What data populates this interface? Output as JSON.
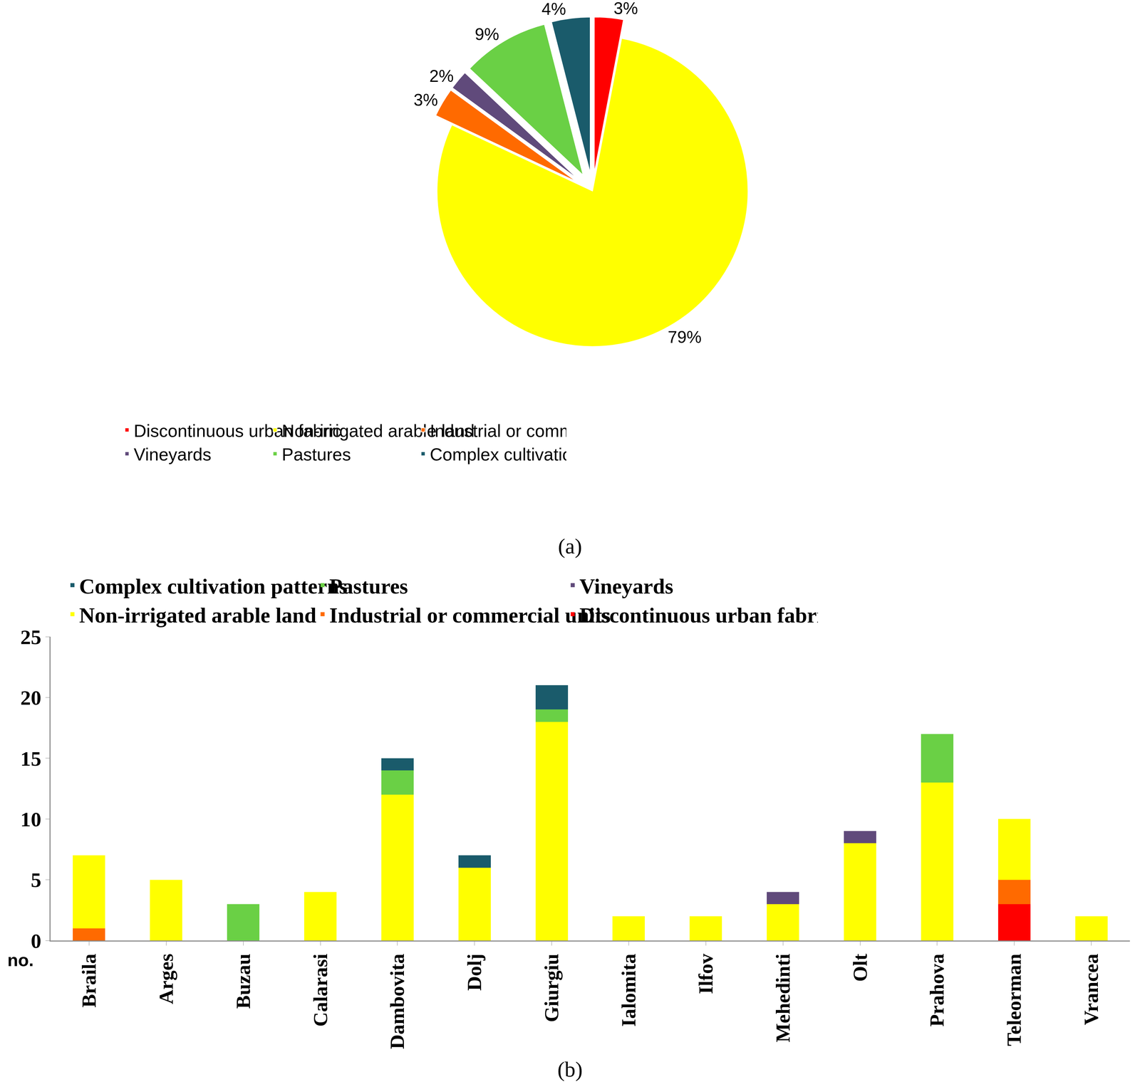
{
  "chart_data": [
    {
      "type": "pie",
      "title": "(a)",
      "categories": [
        "Discontinuous urban fabric",
        "Non-irrigated arable land",
        "Industrial or commercial units",
        "Vineyards",
        "Pastures",
        "Complex cultivation patterns"
      ],
      "values": [
        3,
        79,
        3,
        2,
        9,
        4
      ],
      "value_labels": [
        "3%",
        "79%",
        "3%",
        "2%",
        "9%",
        "4%"
      ],
      "colors": [
        "#ff0000",
        "#ffff00",
        "#ff6a00",
        "#604a7b",
        "#6ad045",
        "#1a5b6b"
      ],
      "data_labels": true,
      "legend": "bottom"
    },
    {
      "type": "bar",
      "title": "(b)",
      "ylabel": "no.",
      "categories": [
        "Braila",
        "Arges",
        "Buzau",
        "Calarasi",
        "Dambovita",
        "Dolj",
        "Giurgiu",
        "Ialomita",
        "Ilfov",
        "Mehedinti",
        "Olt",
        "Prahova",
        "Teleorman",
        "Vrancea"
      ],
      "series": [
        {
          "name": "Discontinuous urban fabric",
          "color": "#ff0000",
          "values": [
            0,
            0,
            0,
            0,
            0,
            0,
            0,
            0,
            0,
            0,
            0,
            0,
            3,
            0
          ]
        },
        {
          "name": "Industrial or commercial units",
          "color": "#ff6a00",
          "values": [
            1,
            0,
            0,
            0,
            0,
            0,
            0,
            0,
            0,
            0,
            0,
            0,
            2,
            0
          ]
        },
        {
          "name": "Non-irrigated arable land",
          "color": "#ffff00",
          "values": [
            6,
            5,
            0,
            4,
            12,
            6,
            18,
            2,
            2,
            3,
            8,
            13,
            5,
            2
          ]
        },
        {
          "name": "Vineyards",
          "color": "#604a7b",
          "values": [
            0,
            0,
            0,
            0,
            0,
            0,
            0,
            0,
            0,
            1,
            1,
            0,
            0,
            0
          ]
        },
        {
          "name": "Pastures",
          "color": "#6ad045",
          "values": [
            0,
            0,
            3,
            0,
            2,
            0,
            1,
            0,
            0,
            0,
            0,
            4,
            0,
            0
          ]
        },
        {
          "name": "Complex cultivation patterns",
          "color": "#1a5b6b",
          "values": [
            0,
            0,
            0,
            0,
            1,
            1,
            2,
            0,
            0,
            0,
            0,
            0,
            0,
            0
          ]
        }
      ],
      "ylim": [
        0,
        25
      ],
      "yticks": [
        0,
        5,
        10,
        15,
        20,
        25
      ],
      "stacked": true,
      "grid": false,
      "legend": "top"
    }
  ]
}
